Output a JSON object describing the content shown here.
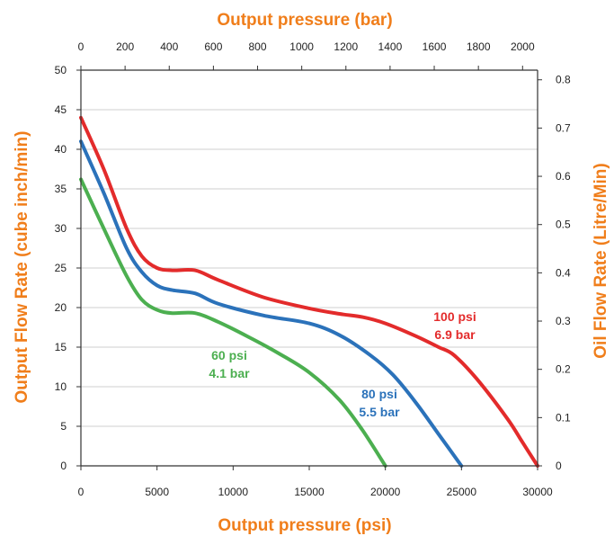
{
  "chart_data": {
    "type": "line",
    "axes": {
      "bottom": {
        "label": "Output pressure (psi)",
        "range": [
          0,
          30000
        ],
        "ticks": [
          "0",
          "5000",
          "10000",
          "15000",
          "20000",
          "25000",
          "30000"
        ]
      },
      "top": {
        "label": "Output pressure (bar)",
        "range": [
          0,
          2068
        ],
        "ticks": [
          "0",
          "200",
          "400",
          "600",
          "800",
          "1000",
          "1200",
          "1400",
          "1600",
          "1800",
          "2000"
        ]
      },
      "left": {
        "label": "Output Flow Rate (cube inch/min)",
        "range": [
          0,
          50
        ],
        "ticks": [
          "0",
          "5",
          "10",
          "15",
          "20",
          "25",
          "30",
          "35",
          "40",
          "45",
          "50"
        ]
      },
      "right": {
        "label": "Oil Flow Rate (Litre/Min)",
        "range": [
          0,
          0.82
        ],
        "ticks": [
          "0",
          "0.1",
          "0.2",
          "0.3",
          "0.4",
          "0.5",
          "0.6",
          "0.7",
          "0.8"
        ]
      }
    },
    "grid": true,
    "series": [
      {
        "name": "100 psi\n6.9 bar",
        "label_lines": [
          "100 psi",
          "6.9 bar"
        ],
        "color": "#e32b2b",
        "x": [
          0,
          1500,
          3000,
          4000,
          5000,
          6000,
          7500,
          9000,
          12000,
          15000,
          17000,
          18500,
          20000,
          22000,
          23500,
          24500,
          26000,
          28000,
          29000,
          30000
        ],
        "y": [
          44,
          37.5,
          30,
          26.5,
          25,
          24.7,
          24.7,
          23.5,
          21.3,
          19.9,
          19.2,
          18.8,
          18.0,
          16.4,
          15,
          14,
          11,
          6,
          3,
          0
        ]
      },
      {
        "name": "80 psi\n5.5 bar",
        "label_lines": [
          "80 psi",
          "5.5 bar"
        ],
        "color": "#2b72ba",
        "x": [
          0,
          1500,
          3000,
          4000,
          5000,
          6000,
          7500,
          9000,
          12000,
          15000,
          17000,
          19000,
          20500,
          22000,
          23500,
          25000
        ],
        "y": [
          41,
          34.5,
          27.5,
          24.5,
          22.8,
          22.2,
          21.8,
          20.5,
          19,
          18,
          16.5,
          14,
          11.5,
          8,
          4,
          0
        ]
      },
      {
        "name": "60 psi\n4.1 bar",
        "label_lines": [
          "60 psi",
          "4.1 bar"
        ],
        "color": "#4caf50",
        "x": [
          0,
          1500,
          3000,
          4000,
          5000,
          6000,
          7500,
          9000,
          11000,
          13000,
          15000,
          17000,
          18500,
          20000
        ],
        "y": [
          36.2,
          30,
          24,
          21,
          19.7,
          19.3,
          19.3,
          18.2,
          16.3,
          14.2,
          11.8,
          8.3,
          4.5,
          0
        ]
      }
    ]
  },
  "colors": {
    "axis_title": "#f07e1b",
    "grid": "#cfcfcf",
    "axis": "#333333"
  }
}
